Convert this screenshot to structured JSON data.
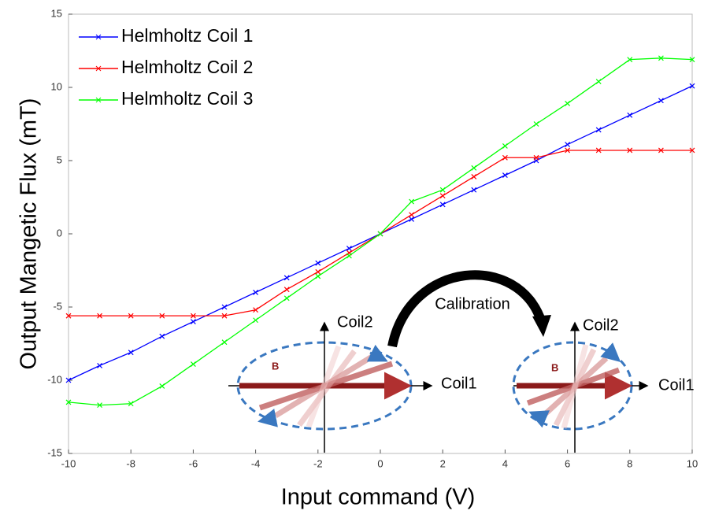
{
  "chart_data": {
    "type": "line",
    "xlabel": "Input command (V)",
    "ylabel": "Output Mangetic Flux (mT)",
    "x": [
      -10,
      -9,
      -8,
      -7,
      -6,
      -5,
      -4,
      -3,
      -2,
      -1,
      0,
      1,
      2,
      3,
      4,
      5,
      6,
      7,
      8,
      9,
      10
    ],
    "series": [
      {
        "name": "Helmholtz Coil 1",
        "color": "#0000ff",
        "values": [
          -10,
          -9,
          -8.1,
          -7,
          -6,
          -5,
          -4,
          -3,
          -2,
          -1,
          0,
          1,
          2,
          3,
          4,
          5,
          6.1,
          7.1,
          8.1,
          9.1,
          10.1
        ]
      },
      {
        "name": "Helmholtz Coil 2",
        "color": "#ff0000",
        "values": [
          -5.6,
          -5.6,
          -5.6,
          -5.6,
          -5.6,
          -5.6,
          -5.2,
          -3.8,
          -2.6,
          -1.3,
          0,
          1.3,
          2.6,
          3.9,
          5.2,
          5.2,
          5.7,
          5.7,
          5.7,
          5.7,
          5.7
        ]
      },
      {
        "name": "Helmholtz Coil 3",
        "color": "#00ff00",
        "values": [
          -11.5,
          -11.7,
          -11.6,
          -10.4,
          -8.9,
          -7.4,
          -5.9,
          -4.4,
          -2.9,
          -1.5,
          0,
          2.2,
          3,
          4.5,
          6,
          7.5,
          8.9,
          10.4,
          11.9,
          12,
          11.9
        ]
      }
    ],
    "xlim": [
      -10,
      10
    ],
    "xticks": [
      -10,
      -8,
      -6,
      -4,
      -2,
      0,
      2,
      4,
      6,
      8,
      10
    ],
    "ylim": [
      -15,
      15
    ],
    "yticks": [
      -15,
      -10,
      -5,
      0,
      5,
      10,
      15
    ],
    "legend": "upper-left",
    "annotations": [
      "Calibration",
      "Coil2",
      "Coil1",
      "B",
      "Coil2",
      "Coil1",
      "B"
    ]
  }
}
